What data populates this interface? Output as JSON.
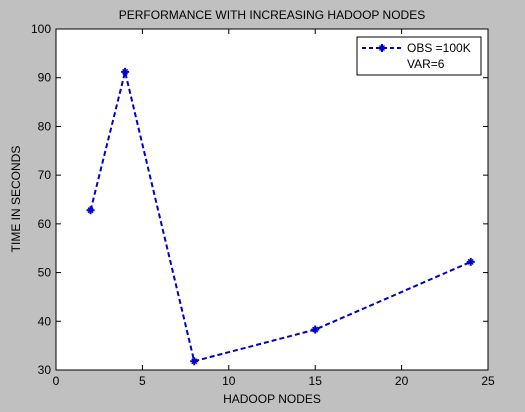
{
  "chart_data": {
    "type": "line",
    "title": "PERFORMANCE WITH INCREASING HADOOP NODES",
    "xlabel": "HADOOP NODES",
    "ylabel": "TIME IN SECONDS",
    "xlim": [
      0,
      25
    ],
    "ylim": [
      30,
      100
    ],
    "xticks": [
      0,
      5,
      10,
      15,
      20,
      25
    ],
    "yticks": [
      30,
      40,
      50,
      60,
      70,
      80,
      90,
      100
    ],
    "grid": false,
    "legend_position": "top-right",
    "series": [
      {
        "name": "OBS =100K",
        "name_line2": "VAR=6",
        "color": "#0000cc",
        "line_style": "dashed",
        "marker": "plus-star",
        "x": [
          2,
          4,
          8,
          15,
          24
        ],
        "y": [
          62.8,
          91.2,
          31.8,
          38.3,
          52.2
        ]
      }
    ]
  }
}
